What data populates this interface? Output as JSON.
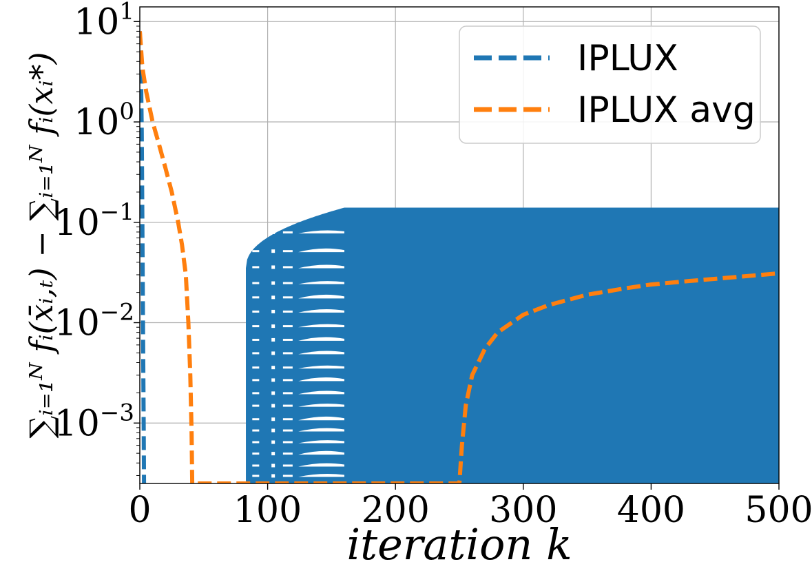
{
  "chart_data": {
    "type": "line",
    "title": "",
    "xlabel": "iteration k",
    "ylabel": "∑ᵢ₌₁ᴺ fᵢ(x̄ᵢ,ₜ) − ∑ᵢ₌₁ᴺ fᵢ(xᵢ*)",
    "xlim": [
      0,
      500
    ],
    "ylim": [
      0.00025,
      14
    ],
    "yscale": "log",
    "grid": true,
    "legend_position": "top-right",
    "x_ticks": [
      0,
      100,
      200,
      300,
      400,
      500
    ],
    "y_ticks": [
      {
        "value": 10,
        "base": "10",
        "exp": "1"
      },
      {
        "value": 1,
        "base": "10",
        "exp": "0"
      },
      {
        "value": 0.1,
        "base": "10",
        "exp": "−1"
      },
      {
        "value": 0.01,
        "base": "10",
        "exp": "−2"
      },
      {
        "value": 0.001,
        "base": "10",
        "exp": "−3"
      }
    ],
    "series": [
      {
        "name": "IPLUX",
        "color": "#1f77b4",
        "style": "dashed",
        "x": [
          0,
          0.5,
          1,
          1.5,
          2,
          2.5,
          3,
          3.3
        ],
        "y": [
          8,
          5,
          2.5,
          0.8,
          0.1,
          0.01,
          0.001,
          0.00025
        ],
        "oscillation_band": {
          "start_x": 83,
          "full_x": 160,
          "end_x": 500,
          "y_low": 0.00025,
          "y_high": 0.14
        }
      },
      {
        "name": "IPLUX avg",
        "color": "#ff7f0e",
        "style": "dashed",
        "x": [
          0,
          2,
          5,
          10,
          15,
          20,
          25,
          30,
          33,
          36,
          38,
          39.5,
          40.5,
          41,
          250,
          252,
          255,
          260,
          270,
          280,
          300,
          320,
          350,
          380,
          400,
          430,
          460,
          500
        ],
        "y": [
          8,
          3.5,
          2,
          1,
          0.6,
          0.35,
          0.2,
          0.1,
          0.06,
          0.03,
          0.01,
          0.003,
          0.0008,
          0.00025,
          0.00025,
          0.0006,
          0.0015,
          0.003,
          0.0055,
          0.008,
          0.012,
          0.015,
          0.019,
          0.022,
          0.024,
          0.026,
          0.028,
          0.031
        ]
      }
    ]
  }
}
